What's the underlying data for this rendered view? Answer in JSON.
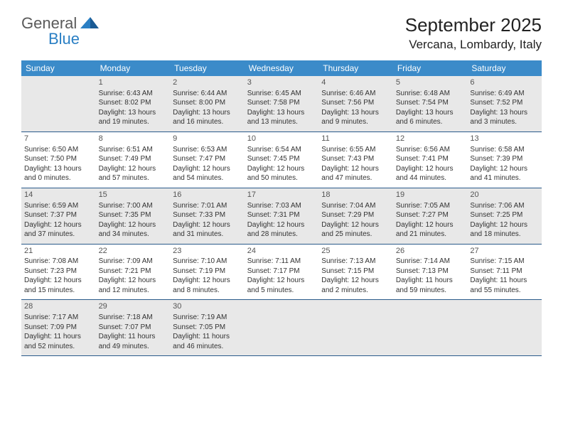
{
  "logo": {
    "text1": "General",
    "text2": "Blue"
  },
  "title": "September 2025",
  "location": "Vercana, Lombardy, Italy",
  "colors": {
    "header_bg": "#3b8bc9",
    "header_text": "#ffffff",
    "shade_bg": "#e8e8e8",
    "border": "#2a5a8a",
    "text": "#333333",
    "logo_general": "#5a5a5a",
    "logo_blue": "#2a7fc4"
  },
  "dayHeaders": [
    "Sunday",
    "Monday",
    "Tuesday",
    "Wednesday",
    "Thursday",
    "Friday",
    "Saturday"
  ],
  "weeks": [
    [
      {
        "empty": true
      },
      {
        "num": "1",
        "sunrise": "6:43 AM",
        "sunset": "8:02 PM",
        "daylight": "13 hours and 19 minutes."
      },
      {
        "num": "2",
        "sunrise": "6:44 AM",
        "sunset": "8:00 PM",
        "daylight": "13 hours and 16 minutes."
      },
      {
        "num": "3",
        "sunrise": "6:45 AM",
        "sunset": "7:58 PM",
        "daylight": "13 hours and 13 minutes."
      },
      {
        "num": "4",
        "sunrise": "6:46 AM",
        "sunset": "7:56 PM",
        "daylight": "13 hours and 9 minutes."
      },
      {
        "num": "5",
        "sunrise": "6:48 AM",
        "sunset": "7:54 PM",
        "daylight": "13 hours and 6 minutes."
      },
      {
        "num": "6",
        "sunrise": "6:49 AM",
        "sunset": "7:52 PM",
        "daylight": "13 hours and 3 minutes."
      }
    ],
    [
      {
        "num": "7",
        "sunrise": "6:50 AM",
        "sunset": "7:50 PM",
        "daylight": "13 hours and 0 minutes."
      },
      {
        "num": "8",
        "sunrise": "6:51 AM",
        "sunset": "7:49 PM",
        "daylight": "12 hours and 57 minutes."
      },
      {
        "num": "9",
        "sunrise": "6:53 AM",
        "sunset": "7:47 PM",
        "daylight": "12 hours and 54 minutes."
      },
      {
        "num": "10",
        "sunrise": "6:54 AM",
        "sunset": "7:45 PM",
        "daylight": "12 hours and 50 minutes."
      },
      {
        "num": "11",
        "sunrise": "6:55 AM",
        "sunset": "7:43 PM",
        "daylight": "12 hours and 47 minutes."
      },
      {
        "num": "12",
        "sunrise": "6:56 AM",
        "sunset": "7:41 PM",
        "daylight": "12 hours and 44 minutes."
      },
      {
        "num": "13",
        "sunrise": "6:58 AM",
        "sunset": "7:39 PM",
        "daylight": "12 hours and 41 minutes."
      }
    ],
    [
      {
        "num": "14",
        "sunrise": "6:59 AM",
        "sunset": "7:37 PM",
        "daylight": "12 hours and 37 minutes."
      },
      {
        "num": "15",
        "sunrise": "7:00 AM",
        "sunset": "7:35 PM",
        "daylight": "12 hours and 34 minutes."
      },
      {
        "num": "16",
        "sunrise": "7:01 AM",
        "sunset": "7:33 PM",
        "daylight": "12 hours and 31 minutes."
      },
      {
        "num": "17",
        "sunrise": "7:03 AM",
        "sunset": "7:31 PM",
        "daylight": "12 hours and 28 minutes."
      },
      {
        "num": "18",
        "sunrise": "7:04 AM",
        "sunset": "7:29 PM",
        "daylight": "12 hours and 25 minutes."
      },
      {
        "num": "19",
        "sunrise": "7:05 AM",
        "sunset": "7:27 PM",
        "daylight": "12 hours and 21 minutes."
      },
      {
        "num": "20",
        "sunrise": "7:06 AM",
        "sunset": "7:25 PM",
        "daylight": "12 hours and 18 minutes."
      }
    ],
    [
      {
        "num": "21",
        "sunrise": "7:08 AM",
        "sunset": "7:23 PM",
        "daylight": "12 hours and 15 minutes."
      },
      {
        "num": "22",
        "sunrise": "7:09 AM",
        "sunset": "7:21 PM",
        "daylight": "12 hours and 12 minutes."
      },
      {
        "num": "23",
        "sunrise": "7:10 AM",
        "sunset": "7:19 PM",
        "daylight": "12 hours and 8 minutes."
      },
      {
        "num": "24",
        "sunrise": "7:11 AM",
        "sunset": "7:17 PM",
        "daylight": "12 hours and 5 minutes."
      },
      {
        "num": "25",
        "sunrise": "7:13 AM",
        "sunset": "7:15 PM",
        "daylight": "12 hours and 2 minutes."
      },
      {
        "num": "26",
        "sunrise": "7:14 AM",
        "sunset": "7:13 PM",
        "daylight": "11 hours and 59 minutes."
      },
      {
        "num": "27",
        "sunrise": "7:15 AM",
        "sunset": "7:11 PM",
        "daylight": "11 hours and 55 minutes."
      }
    ],
    [
      {
        "num": "28",
        "sunrise": "7:17 AM",
        "sunset": "7:09 PM",
        "daylight": "11 hours and 52 minutes."
      },
      {
        "num": "29",
        "sunrise": "7:18 AM",
        "sunset": "7:07 PM",
        "daylight": "11 hours and 49 minutes."
      },
      {
        "num": "30",
        "sunrise": "7:19 AM",
        "sunset": "7:05 PM",
        "daylight": "11 hours and 46 minutes."
      },
      {
        "empty": true
      },
      {
        "empty": true
      },
      {
        "empty": true
      },
      {
        "empty": true
      }
    ]
  ],
  "labels": {
    "sunrise": "Sunrise:",
    "sunset": "Sunset:",
    "daylight": "Daylight:"
  }
}
